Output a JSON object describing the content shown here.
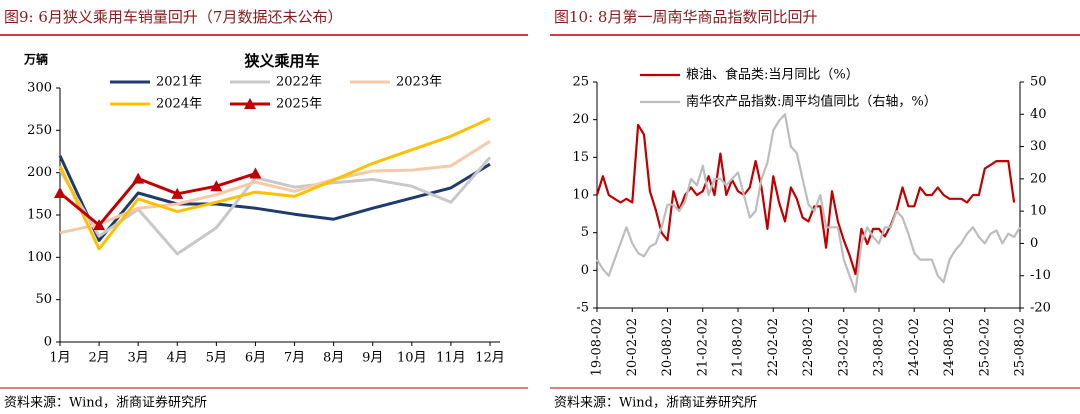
{
  "chart_data": [
    {
      "type": "line",
      "caption": "图9:  6月狭义乘用车销量回升（7月数据还未公布）",
      "title": "狭义乘用车",
      "ylabel": "万辆",
      "source": "资料来源：Wind，浙商证券研究所",
      "categories": [
        "1月",
        "2月",
        "3月",
        "4月",
        "5月",
        "6月",
        "7月",
        "8月",
        "9月",
        "10月",
        "11月",
        "12月"
      ],
      "ylim": [
        0,
        300
      ],
      "yticks": [
        0,
        50,
        100,
        150,
        200,
        250,
        300
      ],
      "series": [
        {
          "name": "2021年",
          "color": "#1f3a6e",
          "values": [
            220,
            120,
            176,
            163,
            163,
            158,
            151,
            145,
            158,
            170,
            182,
            210
          ]
        },
        {
          "name": "2022年",
          "color": "#c8c8c8",
          "values": [
            203,
            125,
            157,
            104,
            135,
            194,
            183,
            188,
            192,
            184,
            165,
            218
          ]
        },
        {
          "name": "2023年",
          "color": "#f6c9a8",
          "values": [
            129,
            139,
            158,
            163,
            174,
            189,
            178,
            192,
            202,
            203,
            208,
            237
          ]
        },
        {
          "name": "2024年",
          "color": "#ffc000",
          "values": [
            208,
            110,
            169,
            154,
            165,
            177,
            172,
            191,
            211,
            227,
            243,
            264
          ]
        },
        {
          "name": "2025年",
          "color": "#c00000",
          "marker": "triangle",
          "values": [
            176,
            138,
            193,
            175,
            184,
            199,
            null,
            null,
            null,
            null,
            null,
            null
          ]
        }
      ]
    },
    {
      "type": "line",
      "caption": "图10:  8月第一周南华商品指数同比回升",
      "source": "资料来源：Wind，浙商证券研究所",
      "categories": [
        "19-08-02",
        null,
        null,
        null,
        null,
        null,
        "20-02-02",
        null,
        null,
        null,
        null,
        null,
        "20-08-02",
        null,
        null,
        null,
        null,
        null,
        "21-02-02",
        null,
        null,
        null,
        null,
        null,
        "21-08-02",
        null,
        null,
        null,
        null,
        null,
        "22-02-02",
        null,
        null,
        null,
        null,
        null,
        "22-08-02",
        null,
        null,
        null,
        null,
        null,
        "23-02-02",
        null,
        null,
        null,
        null,
        null,
        "23-08-02",
        null,
        null,
        null,
        null,
        null,
        "24-02-02",
        null,
        null,
        null,
        null,
        null,
        "24-08-02",
        null,
        null,
        null,
        null,
        null,
        "25-02-02",
        null,
        null,
        null,
        null,
        null,
        "25-08-02"
      ],
      "ylim": [
        -5,
        25
      ],
      "yticks": [
        -5,
        0,
        5,
        10,
        15,
        20,
        25
      ],
      "y2lim": [
        -20,
        50
      ],
      "y2ticks": [
        -20,
        -10,
        0,
        10,
        20,
        30,
        40,
        50
      ],
      "series": [
        {
          "name": "粮油、食品类:当月同比（%）",
          "color": "#c00000",
          "values": [
            10,
            12.5,
            10,
            9.5,
            9,
            9.5,
            9,
            19.3,
            18,
            10.5,
            8,
            5,
            4,
            10.5,
            8,
            10,
            11,
            10,
            10.5,
            12.5,
            10,
            15.5,
            10,
            12,
            10.5,
            10,
            11,
            14.5,
            11,
            5.5,
            12.5,
            9,
            6.5,
            11,
            9.5,
            7,
            6.5,
            8.5,
            8.5,
            3,
            10.5,
            6.5,
            4,
            2,
            -0.5,
            5.5,
            3.5,
            5.5,
            5.5,
            4.5,
            6,
            8,
            11,
            8.5,
            8.5,
            11,
            10,
            10,
            11,
            10,
            9.5,
            9.5,
            9.5,
            9,
            10,
            10,
            13.5,
            14,
            14.5,
            14.5,
            14.5,
            9,
            null
          ]
        },
        {
          "name": "南华农产品指数:周平均值同比（右轴，%）",
          "color": "#bdbdbd",
          "axis": "y2",
          "values": [
            -5,
            -8,
            -10,
            -5,
            0,
            5,
            0,
            -3,
            -4,
            -1,
            0,
            5,
            12,
            12,
            10,
            13,
            20,
            18,
            24,
            15,
            20,
            20,
            18,
            20,
            22,
            15,
            8,
            10,
            20,
            25,
            35,
            38,
            40,
            30,
            28,
            20,
            12,
            10,
            15,
            5,
            5,
            5,
            -5,
            -10,
            -15,
            0,
            5,
            2,
            0,
            5,
            5,
            10,
            8,
            3,
            -3,
            -5,
            -5,
            -5,
            -10,
            -12,
            -5,
            -2,
            0,
            3,
            5,
            2,
            0,
            3,
            4,
            0,
            3,
            2,
            5
          ]
        }
      ]
    }
  ]
}
